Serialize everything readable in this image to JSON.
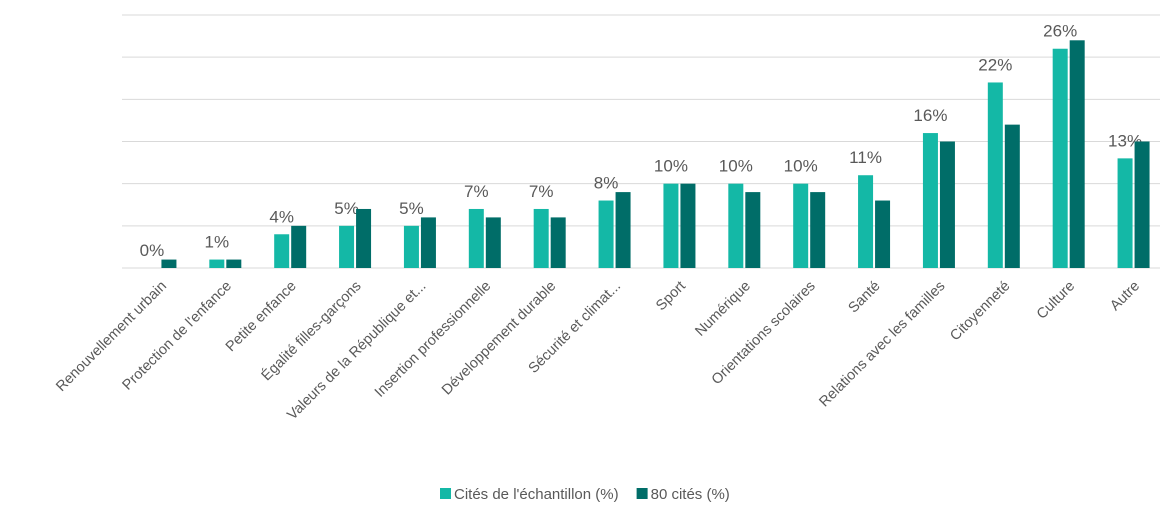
{
  "chart_data": {
    "type": "bar",
    "categories": [
      "Renouvellement urbain",
      "Protection de l'enfance",
      "Petite enfance",
      "Égalité filles-garçons",
      "Valeurs de la République et...",
      "Insertion professionnelle",
      "Développement durable",
      "Sécurité et climat...",
      "Sport",
      "Numérique",
      "Orientations scolaires",
      "Santé",
      "Relations avec les familles",
      "Citoyenneté",
      "Culture",
      "Autre"
    ],
    "series": [
      {
        "name": "Cités de l'échantillon (%)",
        "color": "#14b8a6",
        "values": [
          0,
          1,
          4,
          5,
          5,
          7,
          7,
          8,
          10,
          10,
          10,
          11,
          16,
          22,
          26,
          13
        ],
        "value_labels": [
          "0%",
          "1%",
          "4%",
          "5%",
          "5%",
          "7%",
          "7%",
          "8%",
          "10%",
          "10%",
          "10%",
          "11%",
          "16%",
          "22%",
          "26%",
          "13%"
        ]
      },
      {
        "name": "80 cités (%)",
        "color": "#006d68",
        "values": [
          1,
          1,
          5,
          7,
          6,
          6,
          6,
          9,
          10,
          9,
          9,
          8,
          15,
          17,
          27,
          15
        ]
      }
    ],
    "ylim": [
      0,
      30
    ],
    "yticks": [
      0,
      5,
      10,
      15,
      20,
      25,
      30
    ],
    "grid": true,
    "legend": "bottom"
  }
}
